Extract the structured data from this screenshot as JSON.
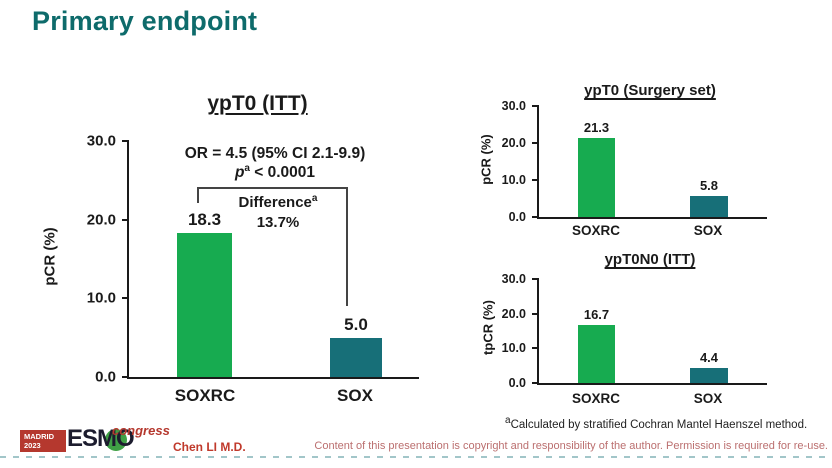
{
  "slide": {
    "title": "Primary endpoint",
    "author": "Chen LI M.D.",
    "copyright": "Content of this presentation is copyright and responsibility of the author. Permission is required for re-use.",
    "footnote": {
      "sup": "a",
      "text": "Calculated by stratified Cochran Mantel Haenszel method."
    },
    "logo": {
      "city": "MADRID",
      "year": "2023",
      "org": "ESMO",
      "event": "congress"
    }
  },
  "colors": {
    "title_teal": "#0e6b6b",
    "bar_green": "#17ab50",
    "bar_teal": "#176f78",
    "logo_red": "#b5382e",
    "author_red": "#c0392b",
    "copyright_rose": "#bb6f6f"
  },
  "chart_data": [
    {
      "type": "bar",
      "title": "ypT0 (ITT)",
      "ylabel": "pCR (%)",
      "ylim": [
        0,
        30
      ],
      "yticks": [
        "30.0",
        "20.0",
        "10.0",
        "0.0"
      ],
      "categories": [
        "SOXRC",
        "SOX"
      ],
      "values": [
        18.3,
        5.0
      ],
      "value_labels": [
        "18.3",
        "5.0"
      ],
      "bar_colors": [
        "#17ab50",
        "#176f78"
      ],
      "grid": false,
      "annotations": {
        "or_text": "OR = 4.5 (95% CI 2.1-9.9)",
        "p_prefix": "p",
        "p_sup": "a",
        "p_rest": " < 0.0001",
        "difference_label": "Difference",
        "difference_sup": "a",
        "difference_value": "13.7%"
      }
    },
    {
      "type": "bar",
      "title": "ypT0 (Surgery set)",
      "ylabel": "pCR (%)",
      "ylim": [
        0,
        30
      ],
      "yticks": [
        "30.0",
        "20.0",
        "10.0",
        "0.0"
      ],
      "categories": [
        "SOXRC",
        "SOX"
      ],
      "values": [
        21.3,
        5.8
      ],
      "value_labels": [
        "21.3",
        "5.8"
      ],
      "bar_colors": [
        "#17ab50",
        "#176f78"
      ],
      "grid": false
    },
    {
      "type": "bar",
      "title": "ypT0N0 (ITT)",
      "ylabel": "tpCR (%)",
      "ylim": [
        0,
        30
      ],
      "yticks": [
        "30.0",
        "20.0",
        "10.0",
        "0.0"
      ],
      "categories": [
        "SOXRC",
        "SOX"
      ],
      "values": [
        16.7,
        4.4
      ],
      "value_labels": [
        "16.7",
        "4.4"
      ],
      "bar_colors": [
        "#17ab50",
        "#176f78"
      ],
      "grid": false
    }
  ]
}
